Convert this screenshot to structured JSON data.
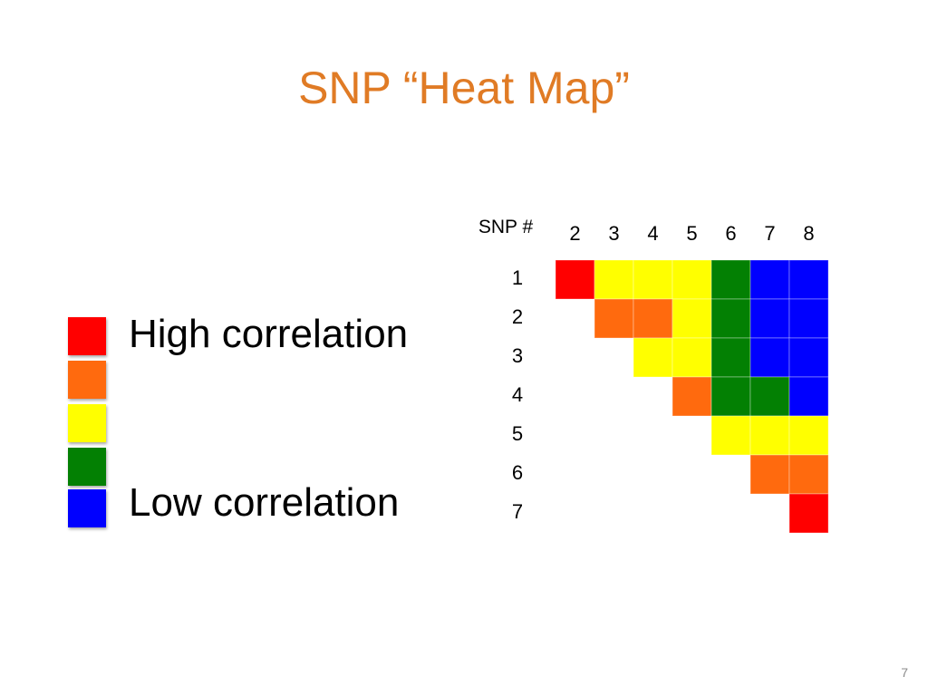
{
  "title": "SNP “Heat Map”",
  "page_number": "7",
  "legend": {
    "high_label": "High correlation",
    "low_label": "Low correlation",
    "scale_colors": [
      "#FF0000",
      "#FF6A0E",
      "#FFFF00",
      "#038003",
      "#0000FF"
    ]
  },
  "chart_data": {
    "type": "heatmap",
    "title": "SNP “Heat Map”",
    "corner_label": "SNP #",
    "x_labels": [
      "2",
      "3",
      "4",
      "5",
      "6",
      "7",
      "8"
    ],
    "y_labels": [
      "1",
      "2",
      "3",
      "4",
      "5",
      "6",
      "7"
    ],
    "levels": [
      "high",
      "mid-high",
      "mid",
      "mid-low",
      "low"
    ],
    "colors": {
      "high": "#FF0000",
      "mid-high": "#FF6A0E",
      "mid": "#FFFF00",
      "mid-low": "#038003",
      "low": "#0000FF"
    },
    "cells": [
      [
        "high",
        "mid",
        "mid",
        "mid",
        "mid-low",
        "low",
        "low"
      ],
      [
        null,
        "mid-high",
        "mid-high",
        "mid",
        "mid-low",
        "low",
        "low"
      ],
      [
        null,
        null,
        "mid",
        "mid",
        "mid-low",
        "low",
        "low"
      ],
      [
        null,
        null,
        null,
        "mid-high",
        "mid-low",
        "mid-low",
        "low"
      ],
      [
        null,
        null,
        null,
        null,
        "mid",
        "mid",
        "mid"
      ],
      [
        null,
        null,
        null,
        null,
        null,
        "mid-high",
        "mid-high"
      ],
      [
        null,
        null,
        null,
        null,
        null,
        null,
        "high"
      ]
    ]
  }
}
